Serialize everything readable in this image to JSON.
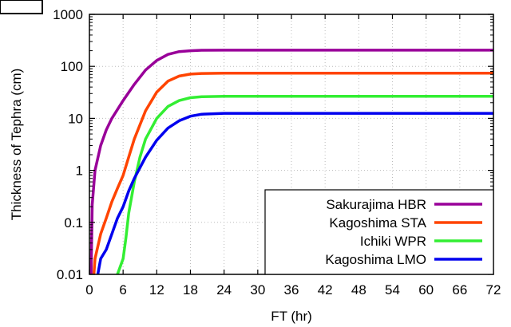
{
  "chart_data": {
    "type": "line",
    "xlabel": "FT (hr)",
    "ylabel": "Thickness of Tephra (cm)",
    "xlim": [
      0,
      72
    ],
    "ylim": [
      0.01,
      1000
    ],
    "yscale": "log",
    "x_ticks": [
      0,
      6,
      12,
      18,
      24,
      30,
      36,
      42,
      48,
      54,
      60,
      66,
      72
    ],
    "y_ticks": [
      {
        "value": 0.01,
        "label": "0.01"
      },
      {
        "value": 0.1,
        "label": "0.1"
      },
      {
        "value": 1,
        "label": "1"
      },
      {
        "value": 10,
        "label": "10"
      },
      {
        "value": 100,
        "label": "100"
      },
      {
        "value": 1000,
        "label": "1000"
      }
    ],
    "grid": true,
    "legend_position": "bottom-right",
    "series": [
      {
        "name": "Sakurajima HBR",
        "color": "#990099",
        "points": [
          [
            0.3,
            0.01
          ],
          [
            0.5,
            0.22
          ],
          [
            1,
            1.0
          ],
          [
            2,
            3.0
          ],
          [
            3,
            6.0
          ],
          [
            4,
            10
          ],
          [
            6,
            22
          ],
          [
            8,
            45
          ],
          [
            10,
            85
          ],
          [
            12,
            130
          ],
          [
            14,
            170
          ],
          [
            16,
            192
          ],
          [
            18,
            200
          ],
          [
            20,
            204
          ],
          [
            24,
            205
          ],
          [
            30,
            205
          ],
          [
            72,
            205
          ]
        ]
      },
      {
        "name": "Kagoshima STA",
        "color": "#ff4400",
        "points": [
          [
            0.8,
            0.01
          ],
          [
            1,
            0.02
          ],
          [
            2,
            0.06
          ],
          [
            3,
            0.12
          ],
          [
            4,
            0.25
          ],
          [
            5,
            0.45
          ],
          [
            6,
            0.8
          ],
          [
            7,
            1.8
          ],
          [
            8,
            4
          ],
          [
            10,
            14
          ],
          [
            12,
            32
          ],
          [
            14,
            52
          ],
          [
            16,
            65
          ],
          [
            18,
            71
          ],
          [
            20,
            73
          ],
          [
            24,
            74
          ],
          [
            30,
            74
          ],
          [
            72,
            74
          ]
        ]
      },
      {
        "name": "Ichiki WPR",
        "color": "#33ee33",
        "points": [
          [
            5,
            0.01
          ],
          [
            6,
            0.02
          ],
          [
            6.5,
            0.05
          ],
          [
            7,
            0.15
          ],
          [
            8,
            0.6
          ],
          [
            9,
            1.8
          ],
          [
            10,
            4
          ],
          [
            12,
            10
          ],
          [
            14,
            17
          ],
          [
            16,
            22
          ],
          [
            18,
            25
          ],
          [
            20,
            26
          ],
          [
            24,
            26.5
          ],
          [
            30,
            26.5
          ],
          [
            72,
            26.5
          ]
        ]
      },
      {
        "name": "Kagoshima LMO",
        "color": "#0000ee",
        "points": [
          [
            1.5,
            0.01
          ],
          [
            2,
            0.02
          ],
          [
            3,
            0.03
          ],
          [
            4,
            0.06
          ],
          [
            5,
            0.12
          ],
          [
            6,
            0.2
          ],
          [
            7,
            0.4
          ],
          [
            8,
            0.7
          ],
          [
            10,
            1.8
          ],
          [
            12,
            3.8
          ],
          [
            14,
            6.5
          ],
          [
            16,
            9
          ],
          [
            18,
            11
          ],
          [
            20,
            12
          ],
          [
            24,
            12.5
          ],
          [
            30,
            12.5
          ],
          [
            72,
            12.5
          ]
        ]
      }
    ]
  }
}
